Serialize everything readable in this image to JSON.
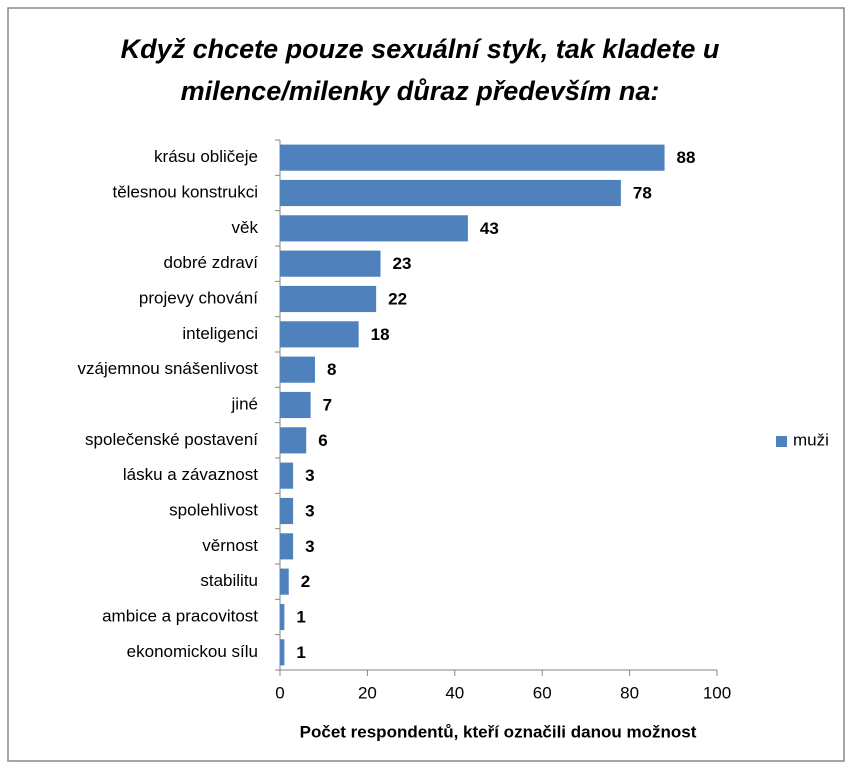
{
  "chart_data": {
    "type": "bar",
    "orientation": "horizontal",
    "title": [
      "Když chcete pouze sexuální styk, tak kladete u",
      "milence/milenky důraz především na:"
    ],
    "xlabel": "Počet respondentů, kteří označili danou možnost",
    "categories": [
      "krásu obličeje",
      "tělesnou konstrukci",
      "věk",
      "dobré zdraví",
      "projevy chování",
      "inteligenci",
      "vzájemnou snášenlivost",
      "jiné",
      "společenské postavení",
      "lásku a závaznost",
      "spolehlivost",
      "věrnost",
      "stabilitu",
      "ambice a pracovitost",
      "ekonomickou sílu"
    ],
    "series": [
      {
        "name": "muži",
        "color": "#4f81bd",
        "values": [
          88,
          78,
          43,
          23,
          22,
          18,
          8,
          7,
          6,
          3,
          3,
          3,
          2,
          1,
          1
        ]
      }
    ],
    "xlim": [
      0,
      100
    ],
    "xticks": [
      0,
      20,
      40,
      60,
      80,
      100
    ],
    "grid": false,
    "legend": "right"
  }
}
